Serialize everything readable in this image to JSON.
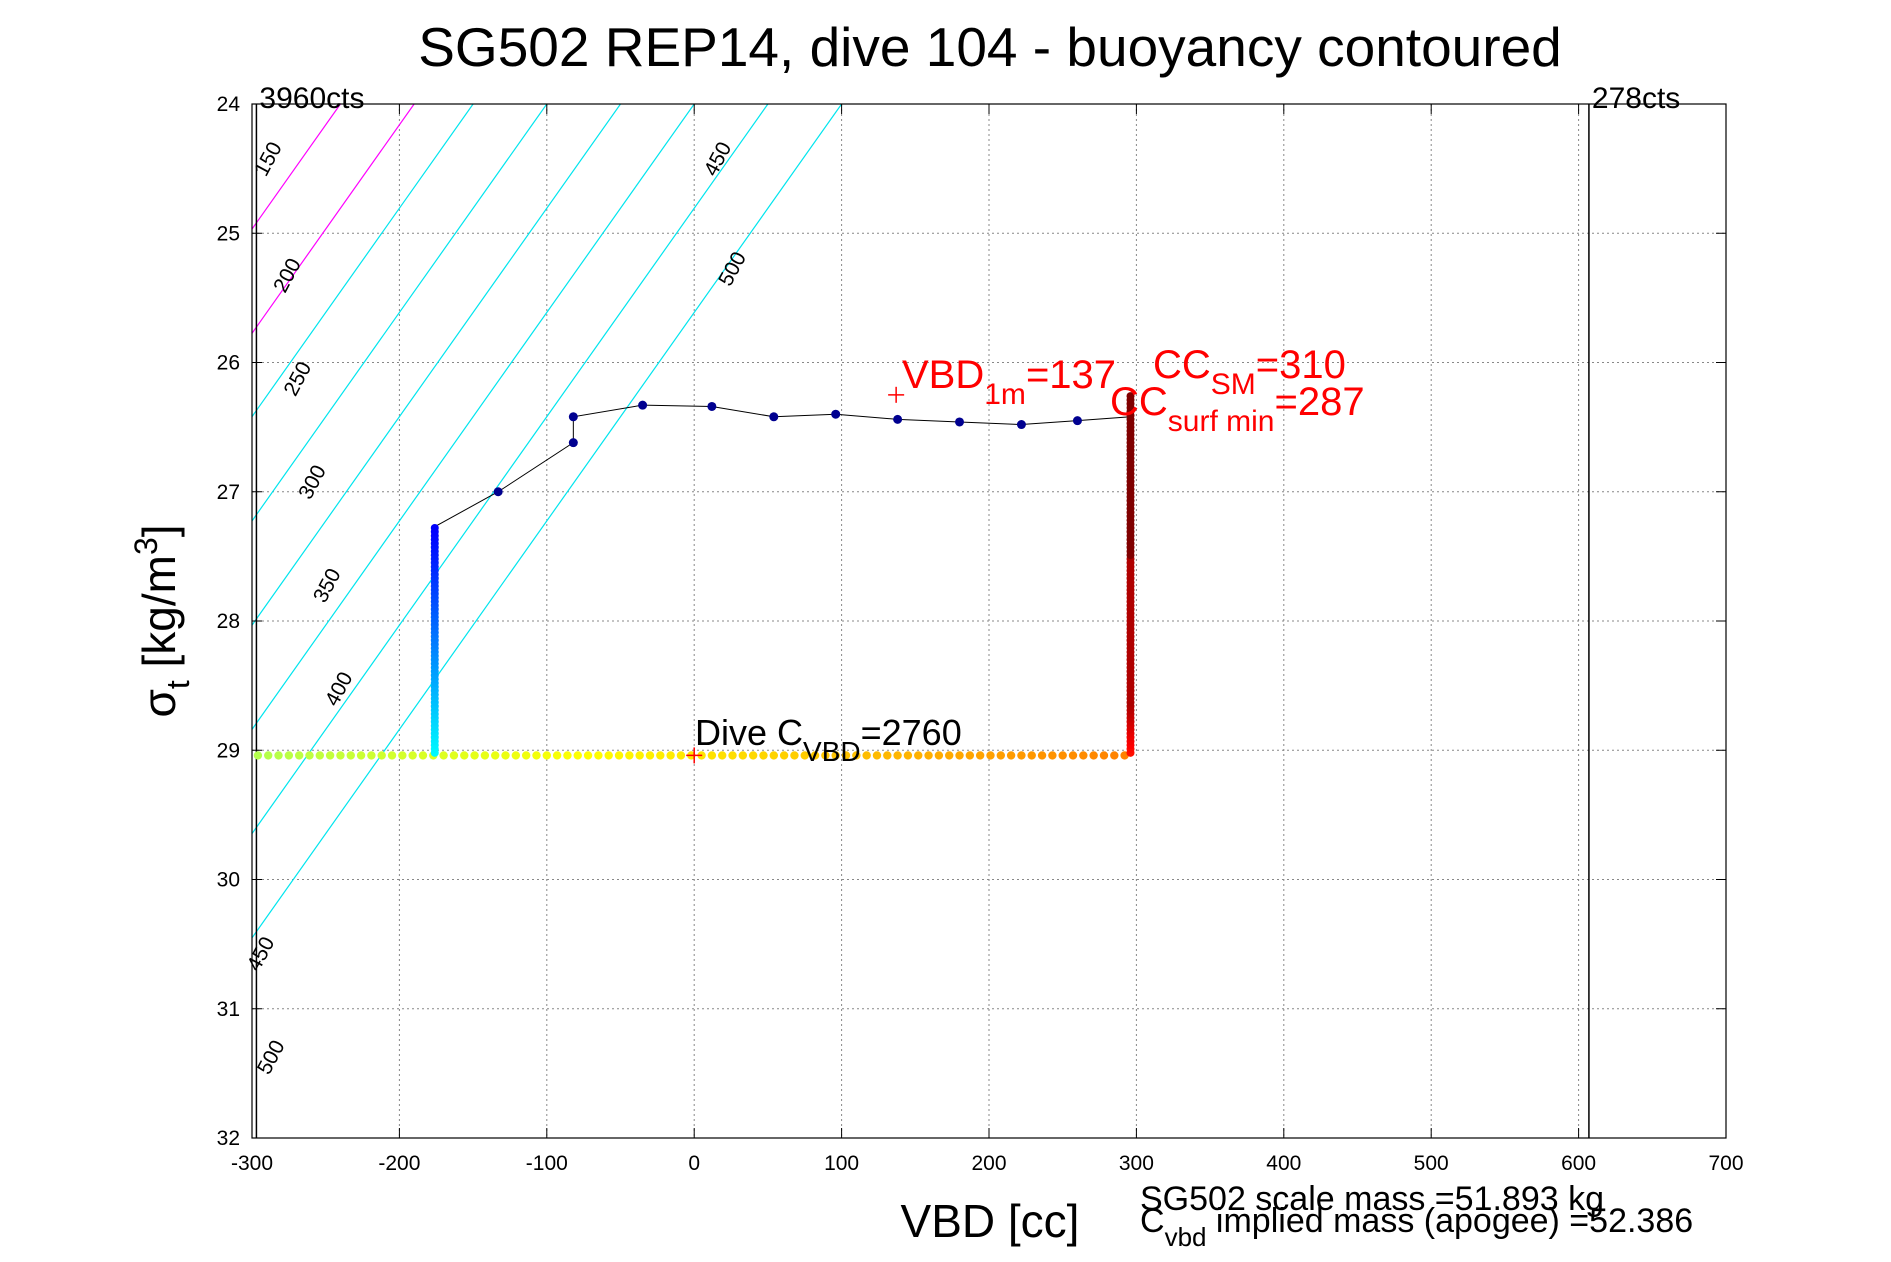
{
  "chart_data": {
    "type": "scatter",
    "title": "SG502 REP14, dive 104 - buoyancy contoured",
    "xlabel": "VBD [cc]",
    "ylabel": {
      "base": "σ",
      "sub": "t",
      "unit_pre": " [kg/m",
      "sup": "3",
      "unit_post": "]"
    },
    "xlim": [
      -300,
      700
    ],
    "ylim": [
      24,
      32
    ],
    "y_reversed": true,
    "grid": true,
    "x_ticks": [
      -300,
      -200,
      -100,
      0,
      100,
      200,
      300,
      400,
      500,
      600,
      700
    ],
    "y_ticks": [
      24,
      25,
      26,
      27,
      28,
      29,
      30,
      31,
      32
    ],
    "x_tick_labels": [
      "-300",
      "-200",
      "-100",
      "0",
      "100",
      "200",
      "300",
      "400",
      "500",
      "600",
      "700"
    ],
    "y_tick_labels": [
      "24",
      "25",
      "26",
      "27",
      "28",
      "29",
      "30",
      "31",
      "32"
    ],
    "count_limits": [
      {
        "label": "3960cts",
        "x": -297
      },
      {
        "label": "278cts",
        "x": 607
      }
    ],
    "contours_left": [
      {
        "label": "150",
        "x_at_y24": -190,
        "color": "#ff00ff"
      },
      {
        "label": "200",
        "x_at_y24": -240,
        "color": "#ff00ff"
      },
      {
        "label": "250",
        "x_at_y24": -150,
        "color": "#00e5ee"
      },
      {
        "label": "300",
        "x_at_y24": -100,
        "color": "#00e5ee"
      },
      {
        "label": "350",
        "x_at_y24": -50,
        "color": "#00e5ee"
      },
      {
        "label": "400",
        "x_at_y24": 0,
        "color": "#00e5ee"
      },
      {
        "label": "450",
        "x_at_y24": 50,
        "color": "#00e5ee"
      },
      {
        "label": "500",
        "x_at_y24": 100,
        "color": "#00e5ee"
      }
    ],
    "contour_slope_cc_per_sigma": -62,
    "contours_left_label_positions": [
      {
        "label": "150",
        "x": -285,
        "y": 24.45
      },
      {
        "label": "200",
        "x": -272,
        "y": 25.35
      },
      {
        "label": "250",
        "x": -265,
        "y": 26.15
      },
      {
        "label": "300",
        "x": -255,
        "y": 26.95
      },
      {
        "label": "350",
        "x": -245,
        "y": 27.75
      },
      {
        "label": "400",
        "x": -237,
        "y": 28.55
      },
      {
        "label": "450",
        "x": -290,
        "y": 30.6
      },
      {
        "label": "500",
        "x": -283,
        "y": 31.4
      }
    ],
    "contours_right_label_positions": [
      {
        "label": "450",
        "x": 20,
        "y": 24.45
      },
      {
        "label": "500",
        "x": 30,
        "y": 25.3
      }
    ],
    "series": [
      {
        "path_line": [
          [
            -176,
            29.0
          ],
          [
            -176,
            27.27
          ],
          [
            -133,
            27.0
          ],
          [
            -82,
            26.62
          ],
          [
            -82,
            26.42
          ],
          [
            -35,
            26.33
          ],
          [
            12,
            26.34
          ],
          [
            54,
            26.42
          ],
          [
            96,
            26.4
          ],
          [
            138,
            26.44
          ],
          [
            180,
            26.46
          ],
          [
            222,
            26.48
          ],
          [
            260,
            26.45
          ],
          [
            296,
            26.42
          ],
          [
            296,
            26.25
          ]
        ],
        "upper_points": [
          [
            -133,
            27.0
          ],
          [
            -82,
            26.62
          ],
          [
            -82,
            26.42
          ],
          [
            -35,
            26.33
          ],
          [
            12,
            26.34
          ],
          [
            54,
            26.42
          ],
          [
            96,
            26.4
          ],
          [
            138,
            26.44
          ],
          [
            180,
            26.46
          ],
          [
            222,
            26.48
          ],
          [
            260,
            26.45
          ]
        ]
      }
    ],
    "left_column": {
      "x": -176,
      "y_from": 27.27,
      "y_to": 29.02
    },
    "right_column": {
      "x": 296,
      "y_from": 26.25,
      "y_to": 29.02
    },
    "bottom_row": {
      "y": 29.04,
      "x_from": -296,
      "x_to": 296
    },
    "colors": {
      "contour": "#00e5ee",
      "contour_low": "#ff00ff",
      "path": "#000000",
      "annotation": "#ff0000",
      "grid": "#888888"
    },
    "annotations": {
      "dive_cvbd": {
        "pre": "Dive C",
        "sub": "VBD",
        "post": "=2760",
        "x": 0,
        "y": 29.04
      },
      "vbd_1m": {
        "pre": "VBD",
        "sub": "1m",
        "post": "=137",
        "x": 137,
        "y": 26.25
      },
      "cc_sm": {
        "pre": "CC",
        "sub": "SM",
        "post": "=310"
      },
      "cc_surf_min": {
        "pre": "CC",
        "sub": "surf min",
        "post": "=287"
      }
    },
    "footer": {
      "scale_mass": "SG502 scale mass =51.893 kg",
      "implied_mass_pre": "C",
      "implied_mass_sub": "vbd",
      "implied_mass_post": " implied mass (apogee) =52.386"
    }
  }
}
